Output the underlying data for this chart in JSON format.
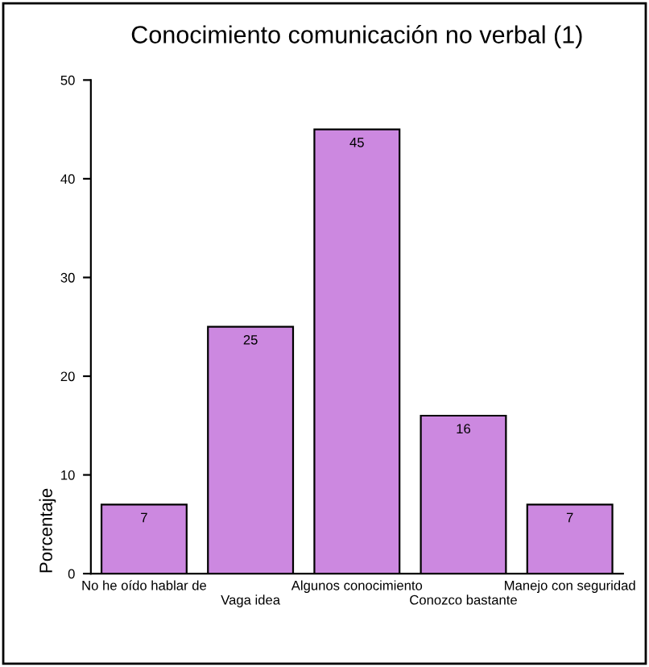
{
  "chart_data": {
    "type": "bar",
    "title": "Conocimiento comunicación no verbal (1)",
    "ylabel": "Porcentaje",
    "categories": [
      "No he oído hablar de",
      "Vaga idea",
      "Algunos conocimiento",
      "Conozco bastante",
      "Manejo con seguridad"
    ],
    "values": [
      7,
      25,
      45,
      16,
      7
    ],
    "color": "#cc88e0",
    "ylim": [
      0,
      50
    ],
    "yticks": [
      0,
      10,
      20,
      30,
      40,
      50
    ],
    "grid": false,
    "data_labels": true
  }
}
